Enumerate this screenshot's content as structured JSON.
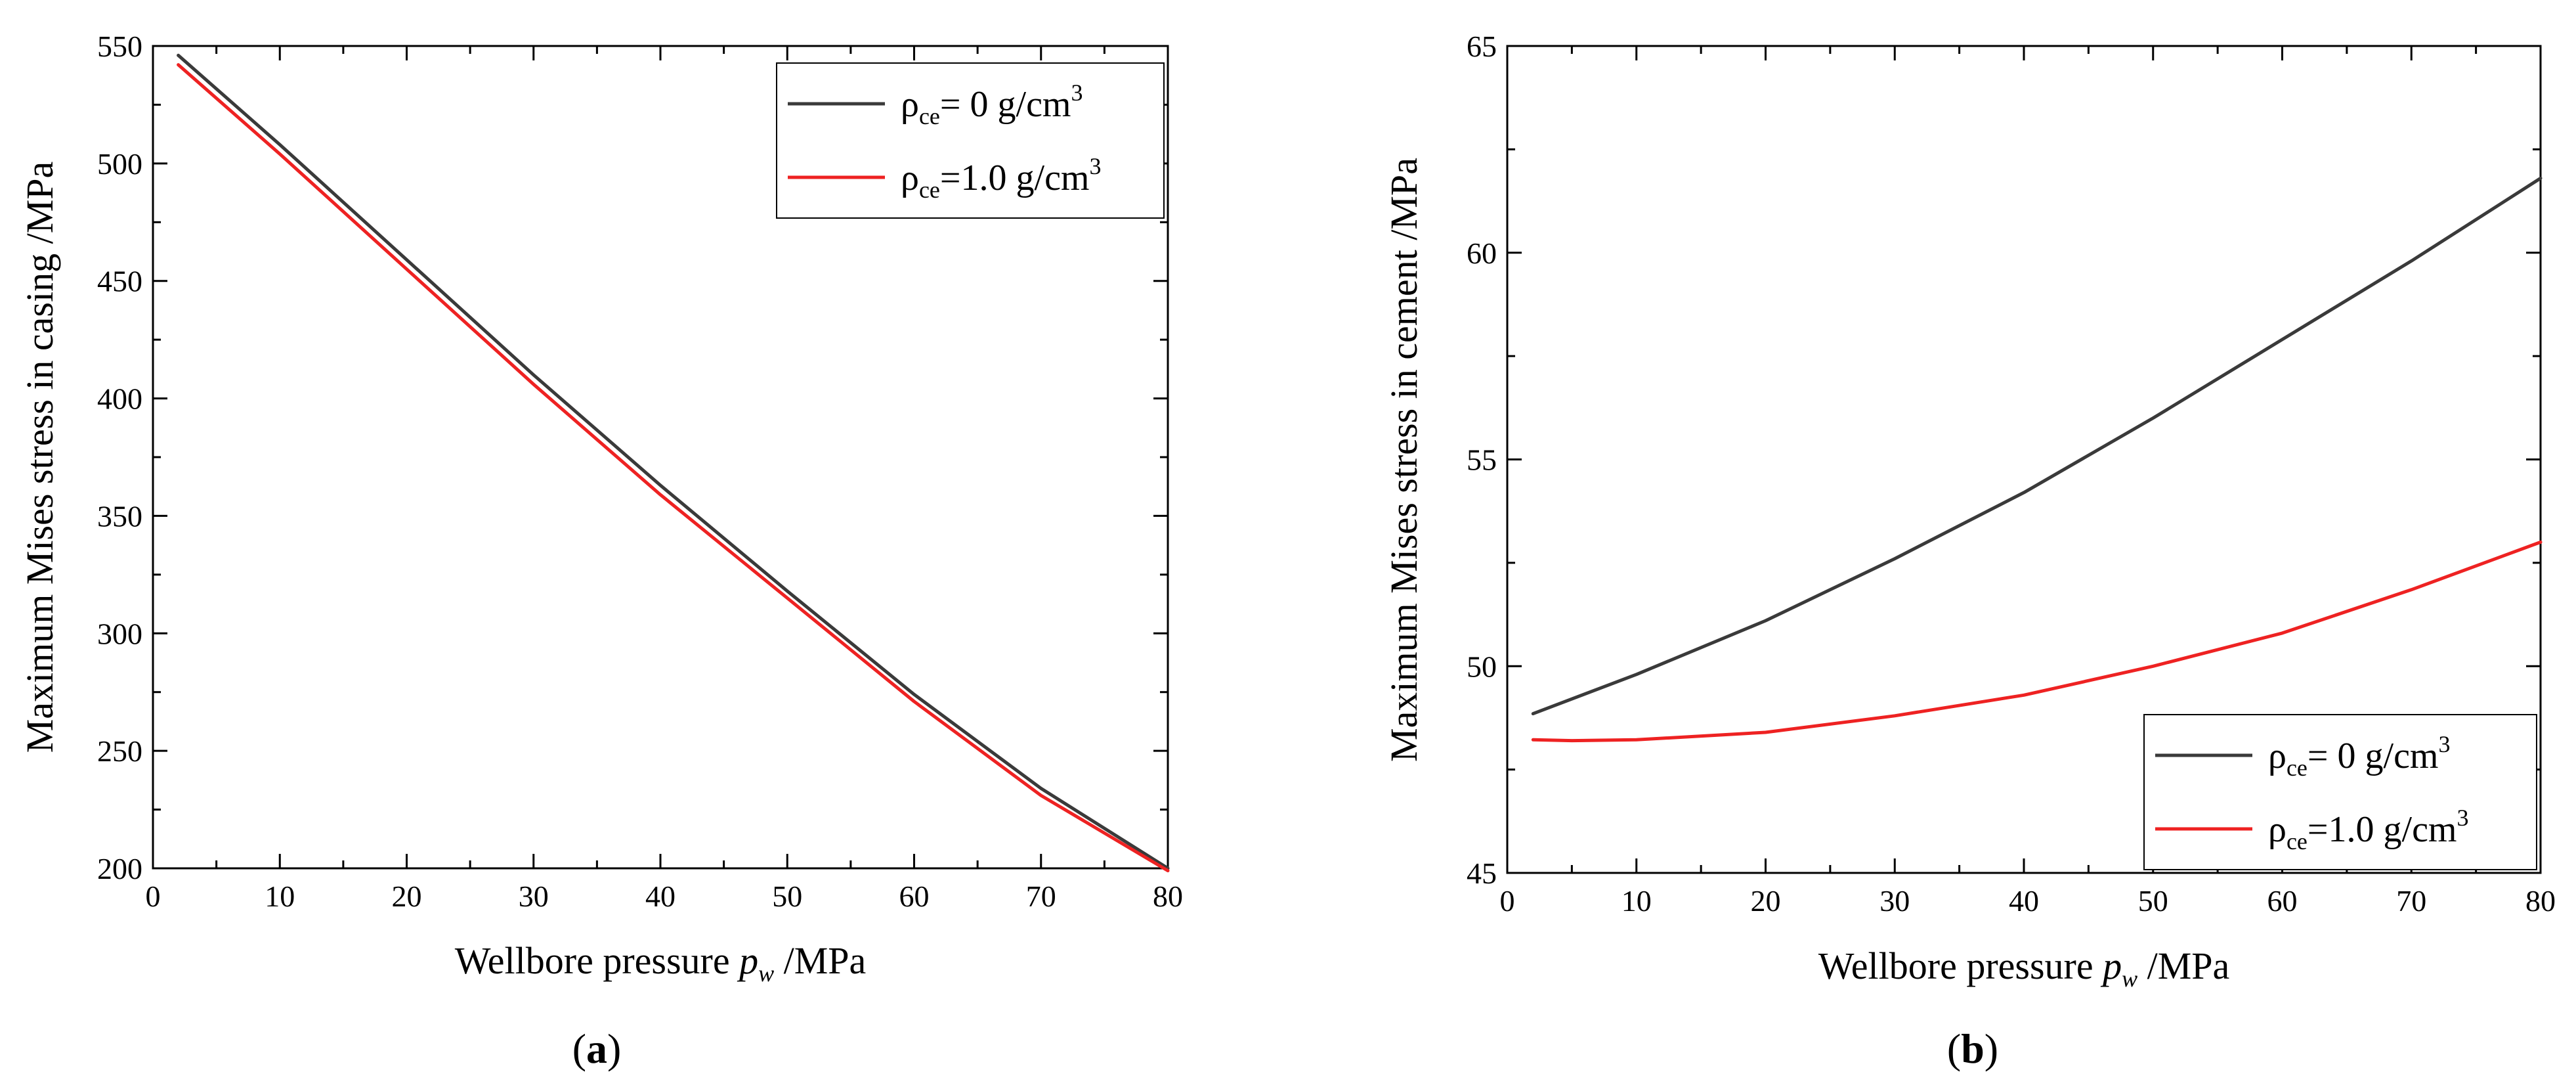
{
  "chart_data": [
    {
      "type": "line",
      "panel": "a",
      "xlabel_prefix": "Wellbore pressure ",
      "xlabel_var": "p",
      "xlabel_sub": "w",
      "xlabel_unit": " /MPa",
      "ylabel": "Maximum Mises stress in casing /MPa",
      "xlim": [
        0,
        80
      ],
      "ylim": [
        200,
        550
      ],
      "xticks": [
        0,
        10,
        20,
        30,
        40,
        50,
        60,
        70,
        80
      ],
      "yticks": [
        200,
        250,
        300,
        350,
        400,
        450,
        500,
        550
      ],
      "legend_position": "top-right",
      "series": [
        {
          "name": "ρce= 0 g/cm3",
          "legend_rho": "ρ",
          "legend_sub": "ce",
          "legend_rest": "= 0 g/cm",
          "legend_sup": "3",
          "color": "#3a3a3a",
          "x": [
            2,
            10,
            20,
            30,
            40,
            50,
            60,
            70,
            80
          ],
          "values": [
            546,
            508,
            459,
            410,
            363,
            318,
            274,
            234,
            200
          ]
        },
        {
          "name": "ρce=1.0 g/cm3",
          "legend_rho": "ρ",
          "legend_sub": "ce",
          "legend_rest": "=1.0 g/cm",
          "legend_sup": "3",
          "color": "#ee2222",
          "x": [
            2,
            10,
            20,
            30,
            40,
            50,
            60,
            70,
            80
          ],
          "values": [
            542,
            504,
            455,
            406,
            359,
            315,
            271,
            231,
            199
          ]
        }
      ]
    },
    {
      "type": "line",
      "panel": "b",
      "xlabel_prefix": "Wellbore pressure ",
      "xlabel_var": "p",
      "xlabel_sub": "w",
      "xlabel_unit": " /MPa",
      "ylabel": "Maximum Mises stress in cement /MPa",
      "xlim": [
        0,
        80
      ],
      "ylim": [
        45,
        65
      ],
      "xticks": [
        0,
        10,
        20,
        30,
        40,
        50,
        60,
        70,
        80
      ],
      "yticks": [
        45,
        50,
        55,
        60,
        65
      ],
      "legend_position": "bottom-right",
      "series": [
        {
          "name": "ρce= 0 g/cm3",
          "legend_rho": "ρ",
          "legend_sub": "ce",
          "legend_rest": "= 0 g/cm",
          "legend_sup": "3",
          "color": "#3a3a3a",
          "x": [
            2,
            10,
            20,
            30,
            40,
            50,
            60,
            70,
            80
          ],
          "values": [
            48.85,
            49.8,
            51.1,
            52.6,
            54.2,
            56.0,
            57.9,
            59.8,
            61.8
          ]
        },
        {
          "name": "ρce=1.0 g/cm3",
          "legend_rho": "ρ",
          "legend_sub": "ce",
          "legend_rest": "=1.0 g/cm",
          "legend_sup": "3",
          "color": "#ee2222",
          "x": [
            2,
            5,
            10,
            20,
            30,
            40,
            50,
            60,
            70,
            80
          ],
          "values": [
            48.22,
            48.2,
            48.22,
            48.4,
            48.8,
            49.3,
            50.0,
            50.8,
            51.85,
            53.0
          ]
        }
      ]
    }
  ],
  "panel_labels": [
    {
      "open": "(",
      "letter": "a",
      "close": ")"
    },
    {
      "open": "(",
      "letter": "b",
      "close": ")"
    }
  ]
}
